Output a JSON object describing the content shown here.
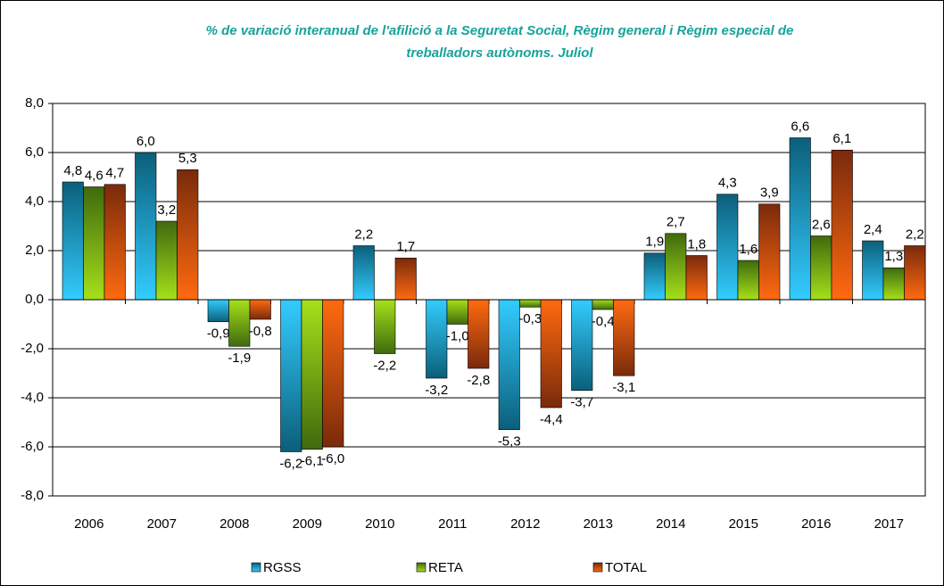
{
  "chart_data": {
    "type": "bar",
    "title": [
      "% de variació interanual de l'afilició a la Seguretat Social, Règim general i Règim especial de",
      "treballadors autònoms. Juliol"
    ],
    "categories": [
      "2006",
      "2007",
      "2008",
      "2009",
      "2010",
      "2011",
      "2012",
      "2013",
      "2014",
      "2015",
      "2016",
      "2017"
    ],
    "series": [
      {
        "name": "RGSS",
        "color": [
          "#0b5f7a",
          "#33ccff"
        ],
        "values": [
          4.8,
          6.0,
          -0.9,
          -6.2,
          2.2,
          -3.2,
          -5.3,
          -3.7,
          1.9,
          4.3,
          6.6,
          2.4
        ],
        "value_labels": [
          "4,8",
          "6,0",
          "-0,9",
          "-6,2",
          "2,2",
          "-3,2",
          "-5,3",
          "-3,7",
          "1,9",
          "4,3",
          "6,6",
          "2,4"
        ]
      },
      {
        "name": "RETA",
        "color": [
          "#3f6a0d",
          "#a6e01a"
        ],
        "values": [
          4.6,
          3.2,
          -1.9,
          -6.1,
          -2.2,
          -1.0,
          -0.3,
          -0.4,
          2.7,
          1.6,
          2.6,
          1.3
        ],
        "value_labels": [
          "4,6",
          "3,2",
          "-1,9",
          "-6,1",
          "-2,2",
          "-1,0",
          "-0,3",
          "-0,4",
          "2,7",
          "1,6",
          "2,6",
          "1,3"
        ]
      },
      {
        "name": "TOTAL",
        "color": [
          "#7a2a0b",
          "#ff6a10"
        ],
        "values": [
          4.7,
          5.3,
          -0.8,
          -6.0,
          1.7,
          -2.8,
          -4.4,
          -3.1,
          1.8,
          3.9,
          6.1,
          2.2
        ],
        "value_labels": [
          "4,7",
          "5,3",
          "-0,8",
          "-6,0",
          "1,7",
          "-2,8",
          "-4,4",
          "-3,1",
          "1,8",
          "3,9",
          "6,1",
          "2,2"
        ]
      }
    ],
    "ylim": [
      -8,
      8
    ],
    "yticks": [
      {
        "value": -8,
        "label": "-8,0"
      },
      {
        "value": -6,
        "label": "-6,0"
      },
      {
        "value": -4,
        "label": "-4,0"
      },
      {
        "value": -2,
        "label": "-2,0"
      },
      {
        "value": 0,
        "label": "0,0"
      },
      {
        "value": 2,
        "label": "2,0"
      },
      {
        "value": 4,
        "label": "4,0"
      },
      {
        "value": 6,
        "label": "6,0"
      },
      {
        "value": 8,
        "label": "8,0"
      }
    ],
    "grid": true,
    "legend": "bottom"
  }
}
